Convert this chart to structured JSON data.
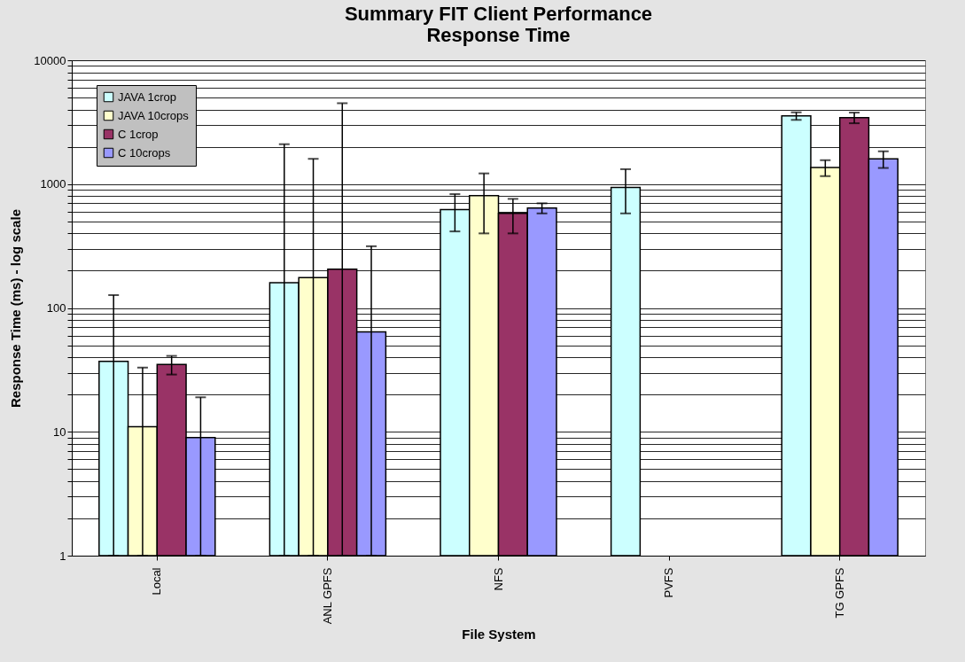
{
  "chart_data": {
    "type": "bar",
    "title": "Summary FIT Client Performance",
    "subtitle": "Response Time",
    "xlabel": "File System",
    "ylabel": "Response Time (ms) - log scale",
    "categories": [
      "Local",
      "ANL GPFS",
      "NFS",
      "PVFS",
      "TG GPFS"
    ],
    "series": [
      {
        "name": "JAVA 1crop",
        "color": "#ccffff",
        "values": [
          37,
          160,
          622,
          940,
          3550
        ],
        "errors": [
          [
            1,
            127
          ],
          [
            1,
            2100
          ],
          [
            415,
            830
          ],
          [
            580,
            1320
          ],
          [
            3300,
            3800
          ]
        ]
      },
      {
        "name": "JAVA 10crops",
        "color": "#ffffcc",
        "values": [
          11,
          176,
          806,
          null,
          1360
        ],
        "errors": [
          [
            1,
            33
          ],
          [
            1,
            1600
          ],
          [
            400,
            1220
          ],
          null,
          [
            1160,
            1560
          ]
        ]
      },
      {
        "name": "C 1crop",
        "color": "#993366",
        "values": [
          35,
          206,
          580,
          null,
          3440
        ],
        "errors": [
          [
            29,
            41
          ],
          [
            1,
            4500
          ],
          [
            400,
            760
          ],
          null,
          [
            3100,
            3780
          ]
        ]
      },
      {
        "name": "C 10crops",
        "color": "#9999ff",
        "values": [
          9,
          64,
          640,
          null,
          1600
        ],
        "errors": [
          [
            1,
            19
          ],
          [
            1,
            315
          ],
          [
            580,
            700
          ],
          null,
          [
            1350,
            1840
          ]
        ]
      }
    ],
    "log": true,
    "ylim": [
      1,
      10000
    ],
    "yticks": [
      1,
      {
        "value": 2,
        "label": null
      },
      {
        "value": 3,
        "label": null
      },
      {
        "value": 4,
        "label": null
      },
      {
        "value": 5,
        "label": null
      },
      {
        "value": 6,
        "label": null
      },
      {
        "value": 7,
        "label": null
      },
      {
        "value": 8,
        "label": null
      },
      {
        "value": 9,
        "label": null
      },
      10,
      {
        "value": 20,
        "label": null
      },
      {
        "value": 30,
        "label": null
      },
      {
        "value": 40,
        "label": null
      },
      {
        "value": 50,
        "label": null
      },
      {
        "value": 60,
        "label": null
      },
      {
        "value": 70,
        "label": null
      },
      {
        "value": 80,
        "label": null
      },
      {
        "value": 90,
        "label": null
      },
      100,
      {
        "value": 200,
        "label": null
      },
      {
        "value": 300,
        "label": null
      },
      {
        "value": 400,
        "label": null
      },
      {
        "value": 500,
        "label": null
      },
      {
        "value": 600,
        "label": null
      },
      {
        "value": 700,
        "label": null
      },
      {
        "value": 800,
        "label": null
      },
      {
        "value": 900,
        "label": null
      },
      1000,
      {
        "value": 2000,
        "label": null
      },
      {
        "value": 3000,
        "label": null
      },
      {
        "value": 4000,
        "label": null
      },
      {
        "value": 5000,
        "label": null
      },
      {
        "value": 6000,
        "label": null
      },
      {
        "value": 7000,
        "label": null
      },
      {
        "value": 8000,
        "label": null
      },
      {
        "value": 9000,
        "label": null
      },
      10000
    ],
    "grid": "y",
    "legend": "top left"
  }
}
